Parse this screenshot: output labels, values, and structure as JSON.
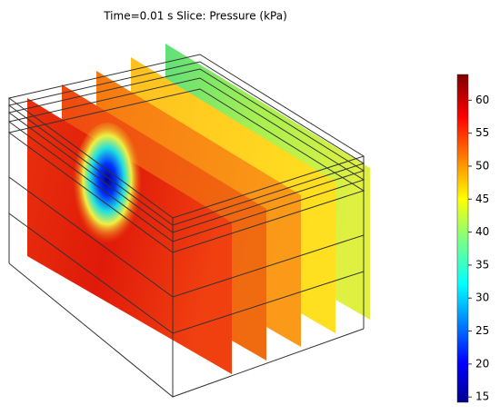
{
  "chart_data": {
    "type": "slice",
    "title": "Time=0.01 s Slice: Pressure (kPa)",
    "colorbar": {
      "lim": [
        14.2,
        63.9
      ],
      "ticks": [
        15,
        20,
        25,
        30,
        35,
        40,
        45,
        50,
        55,
        60
      ]
    }
  }
}
